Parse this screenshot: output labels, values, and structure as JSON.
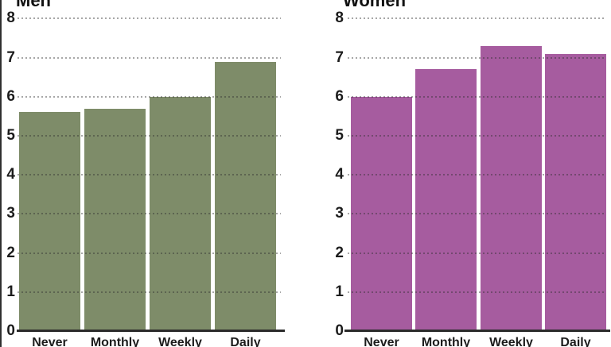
{
  "page": {
    "background": "#ffffff",
    "left_border_color": "#2f2f2f"
  },
  "style": {
    "axis_line_color": "#2b2b2b",
    "gridline_color": "#999999",
    "tick_label_color": "#1c1c1c",
    "title_color": "#111111"
  },
  "chart_data": [
    {
      "type": "bar",
      "title": "Men",
      "categories": [
        "Never",
        "Monthly",
        "Weekly",
        "Daily"
      ],
      "values": [
        5.6,
        5.7,
        6.0,
        6.9
      ],
      "bar_color": "#7E8C69",
      "xlabel": "",
      "ylabel": "",
      "ylim": [
        0,
        8
      ],
      "yticks": [
        8,
        7,
        6,
        5,
        4,
        3,
        2,
        1,
        0
      ],
      "grid": "dotted-horizontal",
      "legend": "none",
      "notes": "title cropped at top edge, category labels cropped at bottom edge"
    },
    {
      "type": "bar",
      "title": "Women",
      "categories": [
        "Never",
        "Monthly",
        "Weekly",
        "Daily"
      ],
      "values": [
        6.0,
        6.7,
        7.3,
        7.1
      ],
      "bar_color": "#A65C9F",
      "xlabel": "",
      "ylabel": "",
      "ylim": [
        0,
        8
      ],
      "yticks": [
        8,
        7,
        6,
        5,
        4,
        3,
        2,
        1,
        0
      ],
      "grid": "dotted-horizontal",
      "legend": "none",
      "notes": "title cropped at top edge, category labels cropped at bottom edge"
    }
  ]
}
